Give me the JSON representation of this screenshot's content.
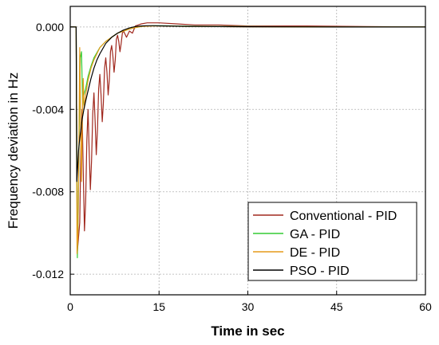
{
  "chart_data": {
    "type": "line",
    "title": "",
    "xlabel": "Time in sec",
    "ylabel": "Frequency deviation in Hz",
    "xlim": [
      0,
      60
    ],
    "ylim": [
      -0.013,
      0.001
    ],
    "x_ticks": [
      0,
      15,
      30,
      45,
      60
    ],
    "x_tick_labels": [
      "0",
      "15",
      "30",
      "45",
      "60"
    ],
    "y_ticks": [
      0.0,
      -0.004,
      -0.008,
      -0.012
    ],
    "y_tick_labels": [
      "0.000",
      "-0.004",
      "-0.008",
      "-0.012"
    ],
    "grid": true,
    "legend_position": "bottom-right",
    "series": [
      {
        "name": "Conventional - PID",
        "color": "#a0281e",
        "x": [
          0,
          1.0,
          1.2,
          1.4,
          1.6,
          1.8,
          2.0,
          2.2,
          2.4,
          2.6,
          2.8,
          3.0,
          3.2,
          3.4,
          3.6,
          3.8,
          4.0,
          4.2,
          4.4,
          4.6,
          4.8,
          5.0,
          5.2,
          5.4,
          5.6,
          5.8,
          6.0,
          6.2,
          6.4,
          6.6,
          6.8,
          7.0,
          7.2,
          7.4,
          7.6,
          7.8,
          8.0,
          8.2,
          8.4,
          8.6,
          8.8,
          9.0,
          9.5,
          10.0,
          10.5,
          11.0,
          11.5,
          12.0,
          13.0,
          14.0,
          15.0,
          18.0,
          21.0,
          25.0,
          30.0,
          40.0,
          50.0,
          60.0
        ],
        "y": [
          0,
          0,
          -0.0109,
          -0.0102,
          -0.0095,
          -0.006,
          -0.004,
          -0.007,
          -0.0099,
          -0.0085,
          -0.0055,
          -0.004,
          -0.006,
          -0.0079,
          -0.0065,
          -0.0042,
          -0.0032,
          -0.0046,
          -0.0062,
          -0.005,
          -0.003,
          -0.0023,
          -0.0033,
          -0.0046,
          -0.0037,
          -0.002,
          -0.0015,
          -0.0022,
          -0.0033,
          -0.0026,
          -0.0012,
          -0.0009,
          -0.0014,
          -0.0022,
          -0.0016,
          -0.0006,
          -0.0004,
          -0.0007,
          -0.0012,
          -0.0008,
          -0.0003,
          -0.0002,
          -0.0005,
          -0.0002,
          -0.0003,
          5e-05,
          0.0001,
          0.00015,
          0.0002,
          0.0002,
          0.0002,
          0.00015,
          0.0001,
          0.0001,
          5e-05,
          5e-05,
          2e-05,
          0.0
        ]
      },
      {
        "name": "GA - PID",
        "color": "#33cc33",
        "x": [
          0,
          1.0,
          1.2,
          1.35,
          1.5,
          1.7,
          1.9,
          2.1,
          2.3,
          2.6,
          3.0,
          3.5,
          4.0,
          5.0,
          6.0,
          7.0,
          8.0,
          9.0,
          10.0,
          11.0,
          12.0,
          14.0,
          16.0,
          20.0,
          30.0,
          45.0,
          60.0
        ],
        "y": [
          0,
          0,
          -0.0112,
          -0.009,
          -0.0055,
          -0.0015,
          -0.0012,
          -0.0038,
          -0.0033,
          -0.003,
          -0.0024,
          -0.0019,
          -0.0015,
          -0.001,
          -0.0007,
          -0.0005,
          -0.0003,
          -0.0002,
          -0.0001,
          -3e-05,
          3e-05,
          6e-05,
          6e-05,
          4e-05,
          2e-05,
          0.0,
          0.0
        ]
      },
      {
        "name": "DE - PID",
        "color": "#e69a1a",
        "x": [
          0,
          1.0,
          1.15,
          1.3,
          1.45,
          1.6,
          1.75,
          1.9,
          2.05,
          2.2,
          2.35,
          2.6,
          3.0,
          3.5,
          4.0,
          5.0,
          6.0,
          7.0,
          8.0,
          9.0,
          10.0,
          11.0,
          12.0,
          14.0,
          16.0,
          20.0,
          30.0,
          45.0,
          60.0
        ],
        "y": [
          0,
          0,
          -0.011,
          -0.0102,
          -0.006,
          -0.001,
          -0.0045,
          -0.0075,
          -0.0042,
          -0.0025,
          -0.004,
          -0.0033,
          -0.0026,
          -0.002,
          -0.0016,
          -0.001,
          -0.0007,
          -0.0005,
          -0.0003,
          -0.0002,
          -0.0001,
          -3e-05,
          3e-05,
          5e-05,
          5e-05,
          3e-05,
          1e-05,
          0.0,
          0.0
        ]
      },
      {
        "name": "PSO - PID",
        "color": "#000000",
        "x": [
          0,
          1.0,
          1.1,
          1.25,
          1.4,
          1.6,
          1.8,
          2.0,
          2.3,
          2.6,
          3.0,
          3.5,
          4.0,
          4.5,
          5.0,
          6.0,
          7.0,
          8.0,
          9.0,
          10.0,
          11.0,
          12.0,
          13.0,
          14.0,
          16.0,
          20.0,
          30.0,
          45.0,
          60.0
        ],
        "y": [
          0,
          0,
          -0.0075,
          -0.0068,
          -0.006,
          -0.0054,
          -0.005,
          -0.0045,
          -0.004,
          -0.0036,
          -0.0031,
          -0.0025,
          -0.002,
          -0.0016,
          -0.0013,
          -0.0008,
          -0.0005,
          -0.0003,
          -0.00015,
          -5e-05,
          2e-05,
          5e-05,
          6e-05,
          6e-05,
          5e-05,
          3e-05,
          1e-05,
          0.0,
          0.0
        ]
      }
    ]
  }
}
